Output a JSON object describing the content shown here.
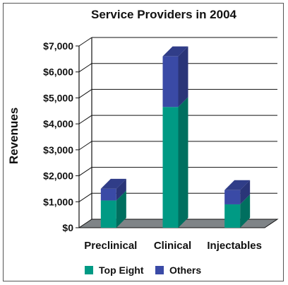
{
  "chart_data": {
    "type": "bar",
    "title": "Service Providers in 2004",
    "xlabel": "",
    "ylabel": "Revenues",
    "categories": [
      "Preclinical",
      "Clinical",
      "Injectables"
    ],
    "series": [
      {
        "name": "Top Eight",
        "values": [
          1050,
          4650,
          900
        ],
        "color": "#009a84"
      },
      {
        "name": "Others",
        "values": [
          450,
          1950,
          550
        ],
        "color": "#3a4aa6"
      }
    ],
    "stacked": true,
    "three_d": true,
    "ylim": [
      0,
      7000
    ],
    "yticks": [
      "$0",
      "$1,000",
      "$2,000",
      "$3,000",
      "$4,000",
      "$5,000",
      "$6,000",
      "$7,000"
    ],
    "grid": true,
    "legend_position": "bottom"
  }
}
